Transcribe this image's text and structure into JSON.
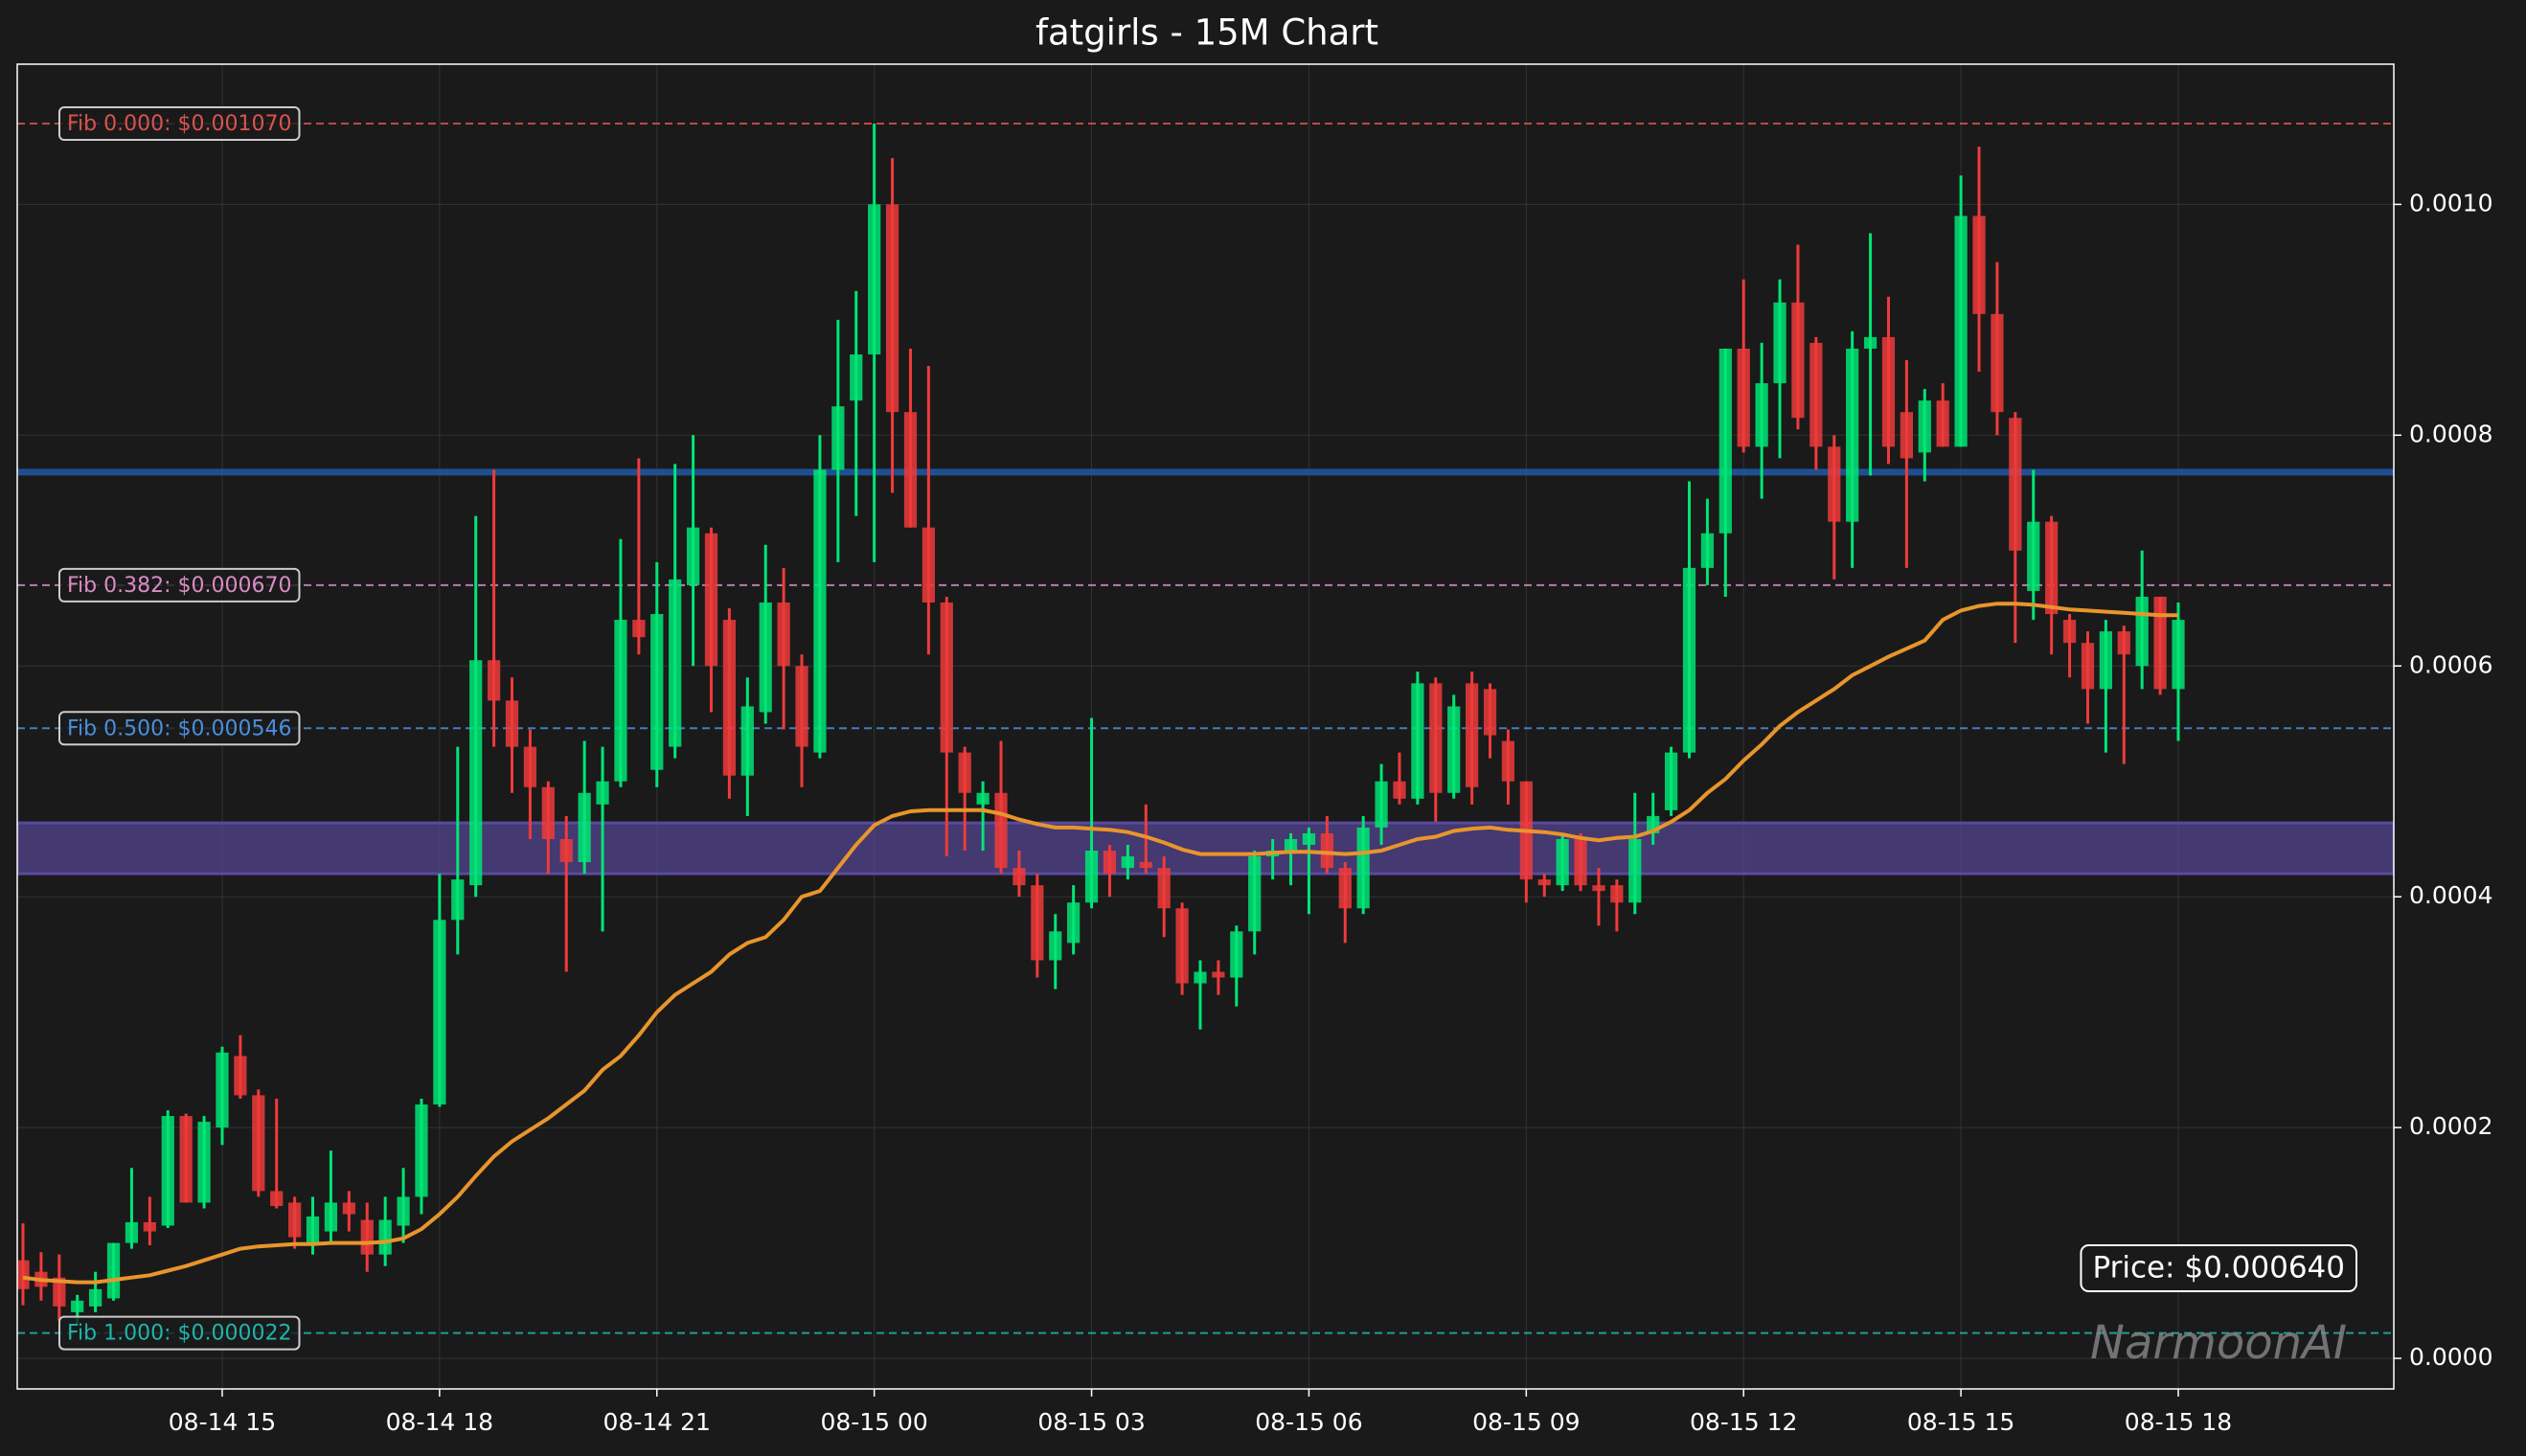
{
  "chart_data": {
    "type": "candlestick",
    "title": "fatgirls - 15M Chart",
    "categories": [
      null,
      null,
      null,
      null,
      null,
      null,
      null,
      null,
      null,
      null,
      null,
      "08-14 15",
      null,
      null,
      null,
      null,
      null,
      null,
      null,
      null,
      null,
      null,
      null,
      "08-14 18",
      null,
      null,
      null,
      null,
      null,
      null,
      null,
      null,
      null,
      null,
      null,
      "08-14 21",
      null,
      null,
      null,
      null,
      null,
      null,
      null,
      null,
      null,
      null,
      null,
      "08-15 00",
      null,
      null,
      null,
      null,
      null,
      null,
      null,
      null,
      null,
      null,
      null,
      "08-15 03",
      null,
      null,
      null,
      null,
      null,
      null,
      null,
      null,
      null,
      null,
      null,
      "08-15 06",
      null,
      null,
      null,
      null,
      null,
      null,
      null,
      null,
      null,
      null,
      null,
      "08-15 09",
      null,
      null,
      null,
      null,
      null,
      null,
      null,
      null,
      null,
      null,
      null,
      "08-15 12",
      null,
      null,
      null,
      null,
      null,
      null,
      null,
      null,
      null,
      null,
      null,
      "08-15 15",
      null,
      null,
      null,
      null,
      null,
      null,
      null,
      null,
      null,
      null,
      null,
      "08-15 18"
    ],
    "open": [
      8.5e-05,
      7.5e-05,
      7e-05,
      4e-05,
      4.5e-05,
      5.2e-05,
      0.0001,
      0.000118,
      0.000115,
      0.00021,
      0.000135,
      0.0002,
      0.000262,
      0.000228,
      0.000145,
      0.000135,
      0.0001,
      0.00011,
      0.000135,
      0.00012,
      9e-05,
      0.000115,
      0.00014,
      0.00022,
      0.00038,
      0.00041,
      0.000605,
      0.00057,
      0.00053,
      0.000495,
      0.00045,
      0.00043,
      0.00048,
      0.0005,
      0.00064,
      0.00051,
      0.00053,
      0.00067,
      0.000715,
      0.00064,
      0.000505,
      0.00056,
      0.000655,
      0.0006,
      0.000525,
      0.00077,
      0.00083,
      0.00087,
      0.001,
      0.00082,
      0.00072,
      0.000655,
      0.000525,
      0.00048,
      0.00049,
      0.000425,
      0.00041,
      0.000345,
      0.00036,
      0.000395,
      0.00044,
      0.000425,
      0.00043,
      0.000425,
      0.00039,
      0.000325,
      0.000335,
      0.00033,
      0.00037,
      0.000435,
      0.00044,
      0.000445,
      0.000455,
      0.000425,
      0.00039,
      0.00046,
      0.0005,
      0.000485,
      0.000585,
      0.00049,
      0.000585,
      0.00058,
      0.000535,
      0.0005,
      0.000415,
      0.00041,
      0.00045,
      0.00041,
      0.00041,
      0.000395,
      0.000455,
      0.000475,
      0.000525,
      0.000685,
      0.000715,
      0.000875,
      0.00079,
      0.000845,
      0.000915,
      0.00088,
      0.00079,
      0.000725,
      0.000875,
      0.000885,
      0.00082,
      0.000785,
      0.00083,
      0.00079,
      0.00099,
      0.000905,
      0.000815,
      0.000665,
      0.000725,
      0.00064,
      0.00062,
      0.00058,
      0.00063,
      0.0006,
      0.00066,
      0.00058
    ],
    "high": [
      0.000117,
      9.2e-05,
      9e-05,
      5.5e-05,
      7.5e-05,
      0.0001,
      0.000165,
      0.00014,
      0.000215,
      0.000212,
      0.00021,
      0.00027,
      0.00028,
      0.000233,
      0.000225,
      0.00014,
      0.00014,
      0.00018,
      0.000145,
      0.000135,
      0.00014,
      0.000165,
      0.000225,
      0.00042,
      0.00053,
      0.00073,
      0.00077,
      0.00059,
      0.000545,
      0.0005,
      0.00047,
      0.000535,
      0.00053,
      0.00071,
      0.00078,
      0.00069,
      0.000775,
      0.0008,
      0.00072,
      0.00065,
      0.00059,
      0.000705,
      0.000685,
      0.00061,
      0.0008,
      0.0009,
      0.000925,
      0.00107,
      0.00104,
      0.000875,
      0.00086,
      0.00066,
      0.00053,
      0.0005,
      0.000535,
      0.00044,
      0.00042,
      0.000385,
      0.00041,
      0.000555,
      0.000445,
      0.000445,
      0.00048,
      0.000435,
      0.000395,
      0.000345,
      0.000345,
      0.000375,
      0.00044,
      0.00045,
      0.000455,
      0.00046,
      0.00047,
      0.00043,
      0.00047,
      0.000515,
      0.000525,
      0.000595,
      0.00059,
      0.000575,
      0.000595,
      0.000585,
      0.000545,
      0.0005,
      0.00042,
      0.000455,
      0.000455,
      0.000425,
      0.000415,
      0.00049,
      0.00049,
      0.00053,
      0.00076,
      0.000745,
      0.000875,
      0.000935,
      0.00088,
      0.000935,
      0.000965,
      0.000885,
      0.0008,
      0.00089,
      0.000975,
      0.00092,
      0.000865,
      0.00084,
      0.000845,
      0.001025,
      0.00105,
      0.00095,
      0.00082,
      0.00077,
      0.00073,
      0.000645,
      0.00063,
      0.00064,
      0.000635,
      0.0007,
      0.00066,
      0.000655
    ],
    "low": [
      4.6e-05,
      5e-05,
      3.3e-05,
      3e-05,
      4e-05,
      5e-05,
      9.5e-05,
      9.8e-05,
      0.000113,
      0.000135,
      0.00013,
      0.000185,
      0.000225,
      0.00014,
      0.00013,
      9.5e-05,
      9e-05,
      0.0001,
      0.00011,
      7.5e-05,
      8e-05,
      0.0001,
      0.000125,
      0.000218,
      0.00035,
      0.0004,
      0.00053,
      0.00049,
      0.00045,
      0.00042,
      0.000335,
      0.00042,
      0.00037,
      0.000495,
      0.00061,
      0.000495,
      0.00052,
      0.0006,
      0.00056,
      0.000485,
      0.00047,
      0.00055,
      0.000545,
      0.000495,
      0.00052,
      0.00069,
      0.00073,
      0.00069,
      0.00075,
      0.00072,
      0.00061,
      0.000435,
      0.00044,
      0.00044,
      0.00042,
      0.0004,
      0.00033,
      0.00032,
      0.00035,
      0.00039,
      0.0004,
      0.000415,
      0.00042,
      0.000365,
      0.000315,
      0.000285,
      0.000315,
      0.000305,
      0.00035,
      0.000415,
      0.00041,
      0.000385,
      0.00042,
      0.00036,
      0.000385,
      0.000445,
      0.00048,
      0.00048,
      0.000465,
      0.000485,
      0.00048,
      0.00052,
      0.00048,
      0.000395,
      0.0004,
      0.000405,
      0.000405,
      0.000375,
      0.00037,
      0.000385,
      0.000445,
      0.00047,
      0.00052,
      0.00067,
      0.00066,
      0.000785,
      0.000745,
      0.00078,
      0.000805,
      0.00077,
      0.000675,
      0.000685,
      0.000765,
      0.000775,
      0.000685,
      0.00076,
      0.00079,
      0.00079,
      0.000855,
      0.0008,
      0.00062,
      0.00064,
      0.00061,
      0.00059,
      0.00055,
      0.000525,
      0.000515,
      0.00058,
      0.000575,
      0.000535
    ],
    "close": [
      6e-05,
      6.2e-05,
      4.5e-05,
      5e-05,
      6e-05,
      0.0001,
      0.000118,
      0.00011,
      0.00021,
      0.000135,
      0.000205,
      0.000265,
      0.000228,
      0.000145,
      0.000132,
      0.000105,
      0.000123,
      0.000135,
      0.000125,
      9e-05,
      0.00012,
      0.00014,
      0.00022,
      0.00038,
      0.000415,
      0.000605,
      0.00057,
      0.00053,
      0.000495,
      0.00045,
      0.00043,
      0.00049,
      0.0005,
      0.00064,
      0.000625,
      0.000645,
      0.000675,
      0.00072,
      0.0006,
      0.000505,
      0.000565,
      0.000655,
      0.0006,
      0.00053,
      0.00077,
      0.000825,
      0.00087,
      0.001,
      0.00082,
      0.00072,
      0.000655,
      0.000525,
      0.00049,
      0.00049,
      0.000425,
      0.00041,
      0.000345,
      0.00037,
      0.000395,
      0.00044,
      0.00042,
      0.000435,
      0.000425,
      0.00039,
      0.000325,
      0.000335,
      0.00033,
      0.00037,
      0.000435,
      0.00044,
      0.00045,
      0.000455,
      0.000425,
      0.00039,
      0.00046,
      0.0005,
      0.000485,
      0.000585,
      0.00049,
      0.000565,
      0.000495,
      0.00054,
      0.0005,
      0.000415,
      0.00041,
      0.00045,
      0.00041,
      0.000405,
      0.000395,
      0.00045,
      0.00047,
      0.000525,
      0.000685,
      0.000715,
      0.000875,
      0.00079,
      0.000845,
      0.000915,
      0.000815,
      0.00079,
      0.000725,
      0.000875,
      0.000885,
      0.00079,
      0.00078,
      0.00083,
      0.00079,
      0.00099,
      0.000905,
      0.00082,
      0.0007,
      0.000725,
      0.000645,
      0.00062,
      0.00058,
      0.00063,
      0.00061,
      0.00066,
      0.00058,
      0.00064
    ],
    "up_color": "#00e676",
    "down_color": "#ef3b3b",
    "ma": {
      "color": "#e8952c",
      "values": [
        7e-05,
        6.8e-05,
        6.7e-05,
        6.6e-05,
        6.6e-05,
        6.8e-05,
        7e-05,
        7.2e-05,
        7.6e-05,
        8e-05,
        8.5e-05,
        9e-05,
        9.5e-05,
        9.7e-05,
        9.8e-05,
        9.9e-05,
        9.9e-05,
        0.0001,
        0.0001,
        0.0001,
        0.000101,
        0.000104,
        0.000112,
        0.000125,
        0.00014,
        0.000158,
        0.000175,
        0.000188,
        0.000198,
        0.000208,
        0.00022,
        0.000232,
        0.00025,
        0.000262,
        0.00028,
        0.0003,
        0.000315,
        0.000325,
        0.000335,
        0.00035,
        0.00036,
        0.000365,
        0.00038,
        0.0004,
        0.000405,
        0.000425,
        0.000445,
        0.000462,
        0.00047,
        0.000474,
        0.000475,
        0.000475,
        0.000475,
        0.000475,
        0.000472,
        0.000467,
        0.000463,
        0.00046,
        0.00046,
        0.000459,
        0.000458,
        0.000456,
        0.000452,
        0.000447,
        0.000441,
        0.000437,
        0.000437,
        0.000437,
        0.000437,
        0.000438,
        0.000439,
        0.000439,
        0.000438,
        0.000437,
        0.000438,
        0.00044,
        0.000445,
        0.00045,
        0.000452,
        0.000457,
        0.000459,
        0.00046,
        0.000458,
        0.000457,
        0.000456,
        0.000454,
        0.000451,
        0.000449,
        0.000451,
        0.000452,
        0.000457,
        0.000465,
        0.000475,
        0.00049,
        0.000502,
        0.000518,
        0.000532,
        0.000548,
        0.00056,
        0.00057,
        0.00058,
        0.000592,
        0.0006,
        0.000608,
        0.000615,
        0.000622,
        0.00064,
        0.000648,
        0.000652,
        0.000654,
        0.000654,
        0.000653,
        0.000651,
        0.000649,
        0.000648,
        0.000647,
        0.000646,
        0.000645,
        0.000644,
        0.000644
      ]
    },
    "ylim": [
      -2.65e-05,
      0.0011215
    ],
    "yticks": [
      {
        "value": 0,
        "label": "0.0000"
      },
      {
        "value": 0.0002,
        "label": "0.0002"
      },
      {
        "value": 0.0004,
        "label": "0.0004"
      },
      {
        "value": 0.0006,
        "label": "0.0006"
      },
      {
        "value": 0.0008,
        "label": "0.0008"
      },
      {
        "value": 0.001,
        "label": "0.0010"
      }
    ],
    "grid": true,
    "zones": [
      {
        "from": 0.00042,
        "to": 0.000464,
        "color": "#5a4a9e"
      }
    ],
    "hlines": [
      {
        "value": 0.000768,
        "color": "#1f4f90"
      }
    ],
    "levels": [
      {
        "label": "Fib 0.000: $0.001070",
        "value": 0.00107,
        "color": "#d9534f"
      },
      {
        "label": "Fib 0.382: $0.000670",
        "value": 0.00067,
        "color": "#d98cc4"
      },
      {
        "label": "Fib 0.500: $0.000546",
        "value": 0.000546,
        "color": "#4a8fdc"
      },
      {
        "label": "Fib 1.000: $0.000022",
        "value": 2.2e-05,
        "color": "#1fb5ad"
      }
    ],
    "price_label": "Price: $0.000640",
    "watermark": "NarmoonAI"
  }
}
